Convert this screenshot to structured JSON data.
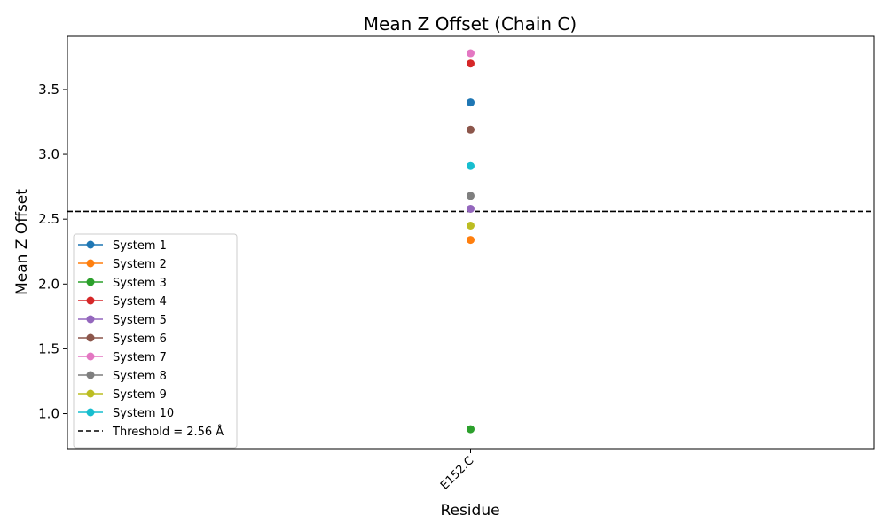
{
  "chart_data": {
    "type": "scatter",
    "title": "Mean Z Offset (Chain C)",
    "xlabel": "Residue",
    "ylabel": "Mean Z Offset",
    "categories": [
      "E152.C"
    ],
    "ylim": [
      0.73,
      3.91
    ],
    "yticks": [
      1.0,
      1.5,
      2.0,
      2.5,
      3.0,
      3.5
    ],
    "ytick_labels": [
      "1.0",
      "1.5",
      "2.0",
      "2.5",
      "3.0",
      "3.5"
    ],
    "grid": false,
    "legend_position": "lower-left",
    "series": [
      {
        "name": "System 1",
        "color": "#1f77b4",
        "values": [
          3.4
        ]
      },
      {
        "name": "System 2",
        "color": "#ff7f0e",
        "values": [
          2.34
        ]
      },
      {
        "name": "System 3",
        "color": "#2ca02c",
        "values": [
          0.88
        ]
      },
      {
        "name": "System 4",
        "color": "#d62728",
        "values": [
          3.7
        ]
      },
      {
        "name": "System 5",
        "color": "#9467bd",
        "values": [
          2.58
        ]
      },
      {
        "name": "System 6",
        "color": "#8c564b",
        "values": [
          3.19
        ]
      },
      {
        "name": "System 7",
        "color": "#e377c2",
        "values": [
          3.78
        ]
      },
      {
        "name": "System 8",
        "color": "#7f7f7f",
        "values": [
          2.68
        ]
      },
      {
        "name": "System 9",
        "color": "#bcbd22",
        "values": [
          2.45
        ]
      },
      {
        "name": "System 10",
        "color": "#17becf",
        "values": [
          2.91
        ]
      }
    ],
    "threshold": {
      "value": 2.56,
      "label": "Threshold = 2.56 Å",
      "color": "#000000",
      "style": "dashed"
    }
  }
}
